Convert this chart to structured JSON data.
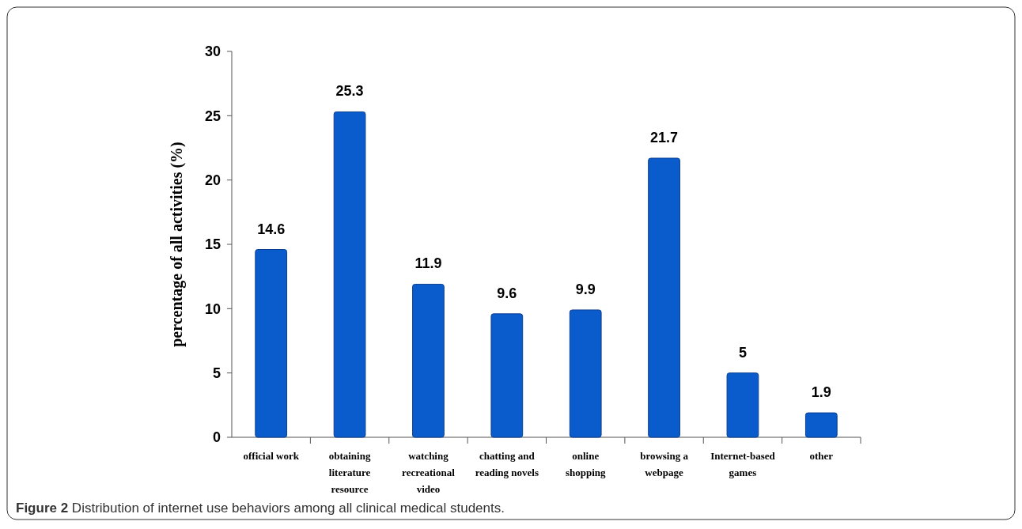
{
  "chart_data": {
    "type": "bar",
    "ylabel": "percentage of all activities (%)",
    "categories": [
      "official work",
      "obtaining literature resource",
      "watching recreational video",
      "chatting and reading novels",
      "online shopping",
      "browsing a webpage",
      "Internet-based games",
      "other"
    ],
    "values": [
      14.6,
      25.3,
      11.9,
      9.6,
      9.9,
      21.7,
      5,
      1.9
    ],
    "color": "#0a5ccc",
    "ylim": [
      0,
      30
    ],
    "yticks": [
      0,
      5,
      10,
      15,
      20,
      25,
      30
    ],
    "data_labels": true,
    "annotations": [
      "Figure 2 Distribution of internet use behaviors among all clinical medical students."
    ]
  }
}
